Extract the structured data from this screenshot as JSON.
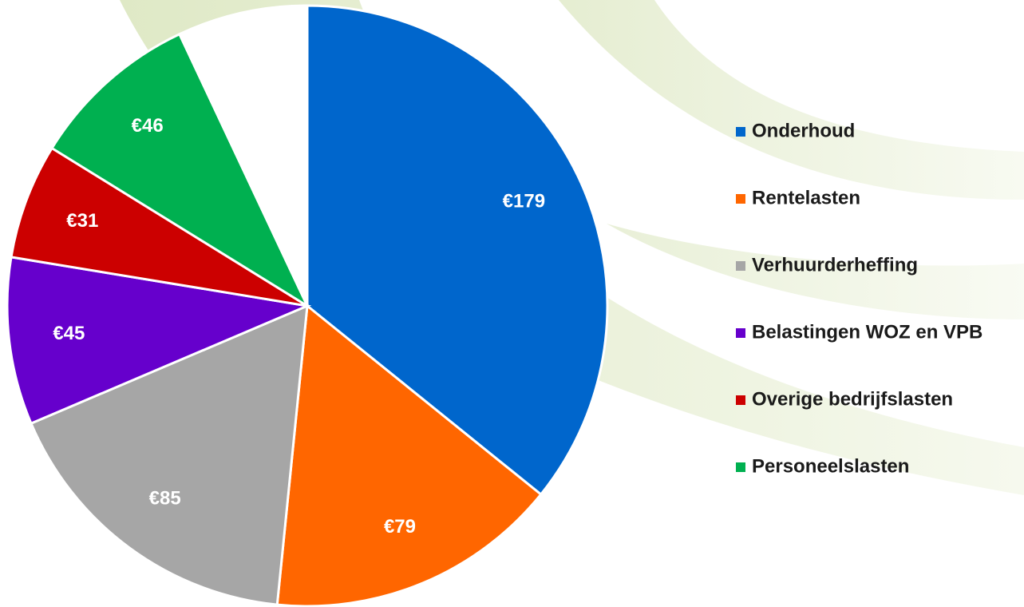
{
  "chart_data": {
    "type": "pie",
    "categories": [
      "Onderhoud",
      "Rentelasten",
      "Verhuurderheffing",
      "Belastingen WOZ en VPB",
      "Overige bedrijfslasten",
      "Personeelslasten",
      null
    ],
    "values": [
      179,
      79,
      85,
      45,
      31,
      46,
      35
    ],
    "value_labels": [
      "€179",
      "€79",
      "€85",
      "€45",
      "€31",
      "€46",
      null
    ],
    "colors": [
      "#0066cc",
      "#ff6600",
      "#a6a6a6",
      "#6600cc",
      "#cc0000",
      "#00b050",
      "#ffffff"
    ],
    "legend": "right"
  }
}
